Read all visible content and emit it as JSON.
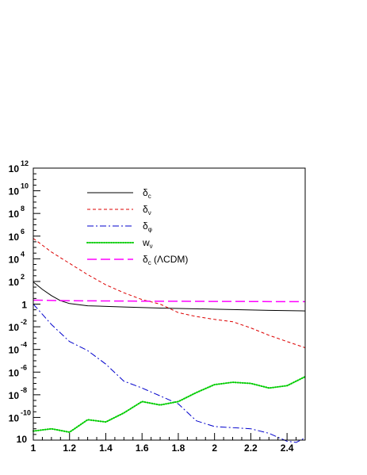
{
  "chart_data": {
    "type": "line",
    "title": "",
    "xlabel": "",
    "ylabel": "",
    "xlim": [
      1,
      2.5
    ],
    "ylim_log10": [
      -12,
      12
    ],
    "y_scale": "log",
    "grid": false,
    "legend_position": "top-left",
    "x_tick_labels": [
      "1",
      "1.2",
      "1.4",
      "1.6",
      "1.8",
      "2",
      "2.2",
      "2.4"
    ],
    "y_tick_labels": [
      {
        "base": "10",
        "exp": "12"
      },
      {
        "base": "10",
        "exp": "10"
      },
      {
        "base": "10",
        "exp": "8"
      },
      {
        "base": "10",
        "exp": "6"
      },
      {
        "base": "10",
        "exp": "4"
      },
      {
        "base": "10",
        "exp": "2"
      },
      {
        "base": "1",
        "exp": ""
      },
      {
        "base": "10",
        "exp": "-2"
      },
      {
        "base": "10",
        "exp": "-4"
      },
      {
        "base": "10",
        "exp": "-6"
      },
      {
        "base": "10",
        "exp": "-8"
      },
      {
        "base": "10",
        "exp": "-10"
      },
      {
        "base": "10",
        "exp": ""
      }
    ],
    "series": [
      {
        "name": "δc",
        "sub": "c",
        "color": "#000000",
        "dash": "",
        "width": 1,
        "x": [
          1.0,
          1.05,
          1.1,
          1.15,
          1.2,
          1.3,
          1.5,
          1.7,
          2.0,
          2.3,
          2.5
        ],
        "log10_y": [
          1.95,
          1.3,
          0.75,
          0.3,
          0.05,
          -0.15,
          -0.25,
          -0.35,
          -0.45,
          -0.55,
          -0.6
        ]
      },
      {
        "name": "δν",
        "sub": "ν",
        "color": "#dd0000",
        "dash": "4,3",
        "width": 1,
        "x": [
          1.0,
          1.1,
          1.2,
          1.3,
          1.4,
          1.5,
          1.6,
          1.7,
          1.8,
          1.9,
          2.0,
          2.1,
          2.2,
          2.3,
          2.4,
          2.5
        ],
        "log10_y": [
          5.8,
          4.6,
          3.6,
          2.6,
          1.7,
          1.0,
          0.4,
          0.0,
          -0.75,
          -1.1,
          -1.35,
          -1.55,
          -2.1,
          -2.75,
          -3.3,
          -3.85
        ]
      },
      {
        "name": "δφ",
        "sub": "φ",
        "color": "#0000cc",
        "dash": "8,3,2,3",
        "width": 1,
        "x": [
          1.0,
          1.1,
          1.2,
          1.3,
          1.4,
          1.5,
          1.6,
          1.7,
          1.8,
          1.9,
          2.0,
          2.1,
          2.2,
          2.3,
          2.4,
          2.45,
          2.5
        ],
        "log10_y": [
          0.0,
          -1.8,
          -3.3,
          -4.1,
          -5.3,
          -6.8,
          -7.4,
          -8.1,
          -8.8,
          -10.3,
          -10.8,
          -10.9,
          -11.0,
          -11.4,
          -12.1,
          -12.2,
          -11.8
        ]
      },
      {
        "name": "wν",
        "sub": "ν",
        "color": "#00cc00",
        "dash": "1,2",
        "width": 2,
        "x": [
          1.0,
          1.1,
          1.2,
          1.3,
          1.4,
          1.5,
          1.6,
          1.7,
          1.8,
          1.9,
          2.0,
          2.1,
          2.2,
          2.3,
          2.4,
          2.5
        ],
        "log10_y": [
          -11.2,
          -11.0,
          -11.3,
          -10.2,
          -10.4,
          -9.6,
          -8.6,
          -8.9,
          -8.6,
          -7.8,
          -7.1,
          -6.9,
          -7.0,
          -7.4,
          -7.2,
          -6.4
        ]
      },
      {
        "name": "δc (ΛCDM)",
        "sub": "c",
        "suffix": "(ΛCDM)",
        "color": "#ff00ff",
        "dash": "12,5",
        "width": 1.5,
        "x": [
          1.0,
          1.2,
          1.4,
          1.6,
          1.8,
          2.0,
          2.2,
          2.4,
          2.5
        ],
        "log10_y": [
          0.35,
          0.3,
          0.28,
          0.26,
          0.25,
          0.24,
          0.23,
          0.22,
          0.22
        ]
      }
    ]
  }
}
